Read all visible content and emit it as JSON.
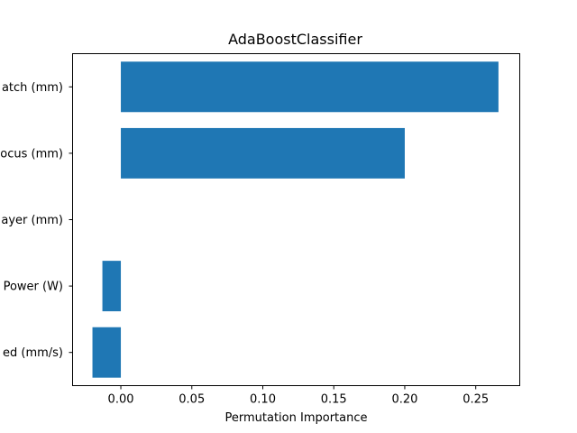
{
  "chart_data": {
    "type": "bar",
    "orientation": "horizontal",
    "title": "AdaBoostClassifier",
    "xlabel": "Permutation Importance",
    "ylabel": "",
    "categories": [
      "Hatch (mm)",
      "Focus (mm)",
      "Layer (mm)",
      "Power (W)",
      "Speed (mm/s)"
    ],
    "visible_category_labels": [
      "atch (mm)",
      "ocus (mm)",
      "ayer (mm)",
      "Power (W)",
      "ed (mm/s)"
    ],
    "values": [
      0.266,
      0.2,
      0.0,
      -0.013,
      -0.02
    ],
    "xlim": [
      -0.034,
      0.281
    ],
    "xticks": [
      0.0,
      0.05,
      0.1,
      0.15,
      0.2,
      0.25
    ],
    "xtick_labels": [
      "0.00",
      "0.05",
      "0.10",
      "0.15",
      "0.20",
      "0.25"
    ],
    "grid": false,
    "bar_color": "#1f77b4"
  }
}
